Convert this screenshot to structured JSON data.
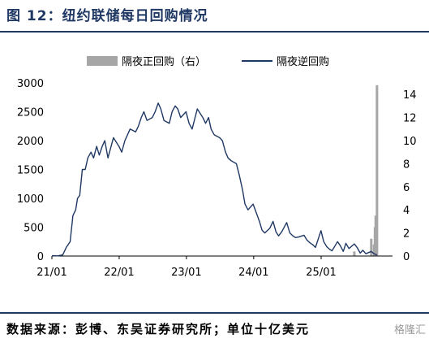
{
  "title": "图 12：纽约联储每日回购情况",
  "source": "数据来源：彭博、东吴证券研究所；单位十亿美元",
  "watermark": "格隆汇",
  "colors": {
    "line": "#1f3864",
    "bar": "#a6a6a6",
    "title": "#1f3864"
  },
  "chart_data": {
    "type": "line",
    "legend": {
      "position": "top-right",
      "entries": [
        "隔夜正回购（右）",
        "隔夜逆回购"
      ]
    },
    "x_ticks": [
      "21/01",
      "22/01",
      "23/01",
      "24/01",
      "25/01"
    ],
    "x_tick_dates": [
      "2021-01-01",
      "2022-01-01",
      "2023-01-01",
      "2024-01-01",
      "2025-01-01"
    ],
    "x_range": [
      "2021-01-01",
      "2025-11-01"
    ],
    "y_left": {
      "range": [
        0,
        3000
      ],
      "ticks": [
        0,
        500,
        1000,
        1500,
        2000,
        2500,
        3000
      ]
    },
    "y_right": {
      "range": [
        0,
        15
      ],
      "ticks": [
        0,
        2,
        4,
        6,
        8,
        10,
        12,
        14
      ]
    },
    "grid": false,
    "series": [
      {
        "name": "隔夜逆回购",
        "axis": "left",
        "x": [
          "2021-01-01",
          "2021-02-01",
          "2021-03-01",
          "2021-03-20",
          "2021-04-10",
          "2021-04-25",
          "2021-05-10",
          "2021-05-20",
          "2021-06-01",
          "2021-06-15",
          "2021-07-01",
          "2021-07-15",
          "2021-08-01",
          "2021-08-15",
          "2021-09-01",
          "2021-09-15",
          "2021-10-01",
          "2021-10-15",
          "2021-11-01",
          "2021-12-01",
          "2021-12-31",
          "2022-01-15",
          "2022-02-01",
          "2022-02-15",
          "2022-03-01",
          "2022-03-31",
          "2022-04-15",
          "2022-05-01",
          "2022-05-15",
          "2022-06-01",
          "2022-06-30",
          "2022-07-15",
          "2022-08-01",
          "2022-08-15",
          "2022-09-01",
          "2022-09-30",
          "2022-10-15",
          "2022-11-01",
          "2022-11-15",
          "2022-12-01",
          "2022-12-30",
          "2023-01-15",
          "2023-02-01",
          "2023-03-01",
          "2023-03-31",
          "2023-04-15",
          "2023-05-01",
          "2023-05-15",
          "2023-06-01",
          "2023-06-30",
          "2023-07-15",
          "2023-08-01",
          "2023-08-15",
          "2023-09-01",
          "2023-09-29",
          "2023-10-15",
          "2023-11-01",
          "2023-11-15",
          "2023-12-01",
          "2023-12-29",
          "2024-01-15",
          "2024-02-01",
          "2024-02-15",
          "2024-03-01",
          "2024-03-28",
          "2024-04-15",
          "2024-05-01",
          "2024-05-15",
          "2024-06-01",
          "2024-06-28",
          "2024-07-15",
          "2024-08-01",
          "2024-08-15",
          "2024-09-01",
          "2024-09-30",
          "2024-10-15",
          "2024-11-01",
          "2024-11-15",
          "2024-12-01",
          "2024-12-31",
          "2025-01-15",
          "2025-02-01",
          "2025-02-15",
          "2025-03-01",
          "2025-03-31",
          "2025-04-15",
          "2025-05-01",
          "2025-05-15",
          "2025-06-01",
          "2025-06-30",
          "2025-07-15",
          "2025-08-01",
          "2025-08-15",
          "2025-09-01",
          "2025-09-30",
          "2025-10-15",
          "2025-10-31"
        ],
        "values": [
          5,
          3,
          20,
          150,
          250,
          700,
          800,
          1000,
          1050,
          1500,
          1500,
          1700,
          1800,
          1700,
          1900,
          1750,
          1900,
          2000,
          1700,
          2050,
          1900,
          1800,
          2000,
          2100,
          2200,
          2150,
          2250,
          2400,
          2500,
          2350,
          2400,
          2500,
          2650,
          2550,
          2350,
          2300,
          2500,
          2600,
          2550,
          2400,
          2500,
          2300,
          2200,
          2550,
          2400,
          2300,
          2400,
          2200,
          2100,
          2050,
          2000,
          1800,
          1700,
          1650,
          1600,
          1400,
          1150,
          900,
          800,
          900,
          750,
          600,
          450,
          400,
          480,
          600,
          420,
          350,
          420,
          580,
          400,
          350,
          320,
          330,
          360,
          280,
          230,
          200,
          150,
          440,
          250,
          160,
          120,
          90,
          250,
          180,
          80,
          220,
          130,
          210,
          150,
          50,
          100,
          40,
          80,
          40,
          20
        ]
      },
      {
        "name": "隔夜正回购（右）",
        "axis": "right",
        "type": "bar",
        "x": [
          "2025-06-30",
          "2025-09-30",
          "2025-10-15",
          "2025-10-20",
          "2025-10-24",
          "2025-10-28",
          "2025-10-31"
        ],
        "values": [
          0.4,
          1.5,
          1.0,
          2.5,
          3.5,
          2.0,
          14.8
        ]
      }
    ]
  }
}
